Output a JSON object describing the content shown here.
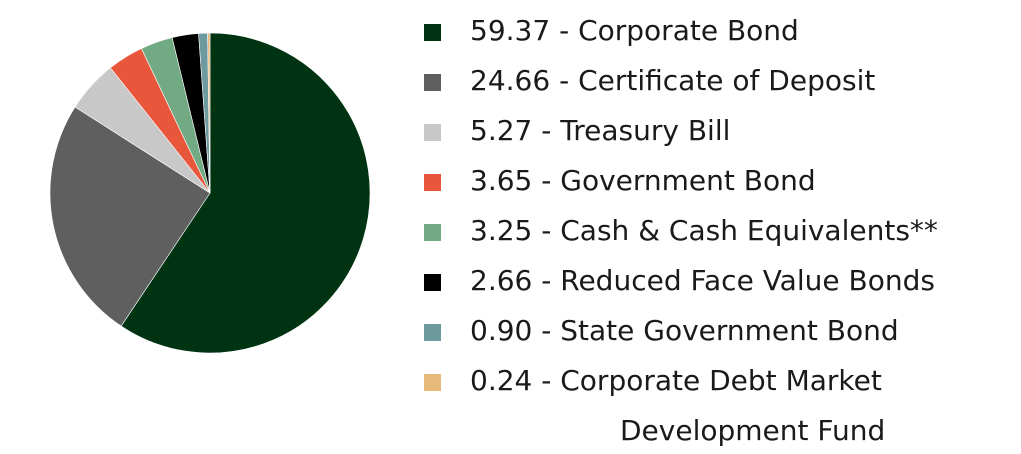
{
  "chart_data": {
    "type": "pie",
    "title": "",
    "unit": "",
    "legend_position": "right",
    "slices": [
      {
        "value": 59.37,
        "value_text": "59.37",
        "label": "Corporate Bond",
        "color": "#003311"
      },
      {
        "value": 24.66,
        "value_text": "24.66",
        "label": "Certificate of Deposit",
        "color": "#5f5f5f"
      },
      {
        "value": 5.27,
        "value_text": "5.27",
        "label": "Treasury Bill",
        "color": "#c8c8c8"
      },
      {
        "value": 3.65,
        "value_text": "3.65",
        "label": "Government Bond",
        "color": "#e8573b"
      },
      {
        "value": 3.25,
        "value_text": "3.25",
        "label": "Cash & Cash Equivalents**",
        "color": "#72ab83"
      },
      {
        "value": 2.66,
        "value_text": "2.66",
        "label": "Reduced Face Value Bonds",
        "color": "#000000"
      },
      {
        "value": 0.9,
        "value_text": "0.90",
        "label": "State Government Bond",
        "color": "#6c9a9f"
      },
      {
        "value": 0.24,
        "value_text": "0.24",
        "label": "Corporate Debt Market",
        "label_line2": "Development Fund",
        "color": "#e8ba7a"
      }
    ]
  }
}
